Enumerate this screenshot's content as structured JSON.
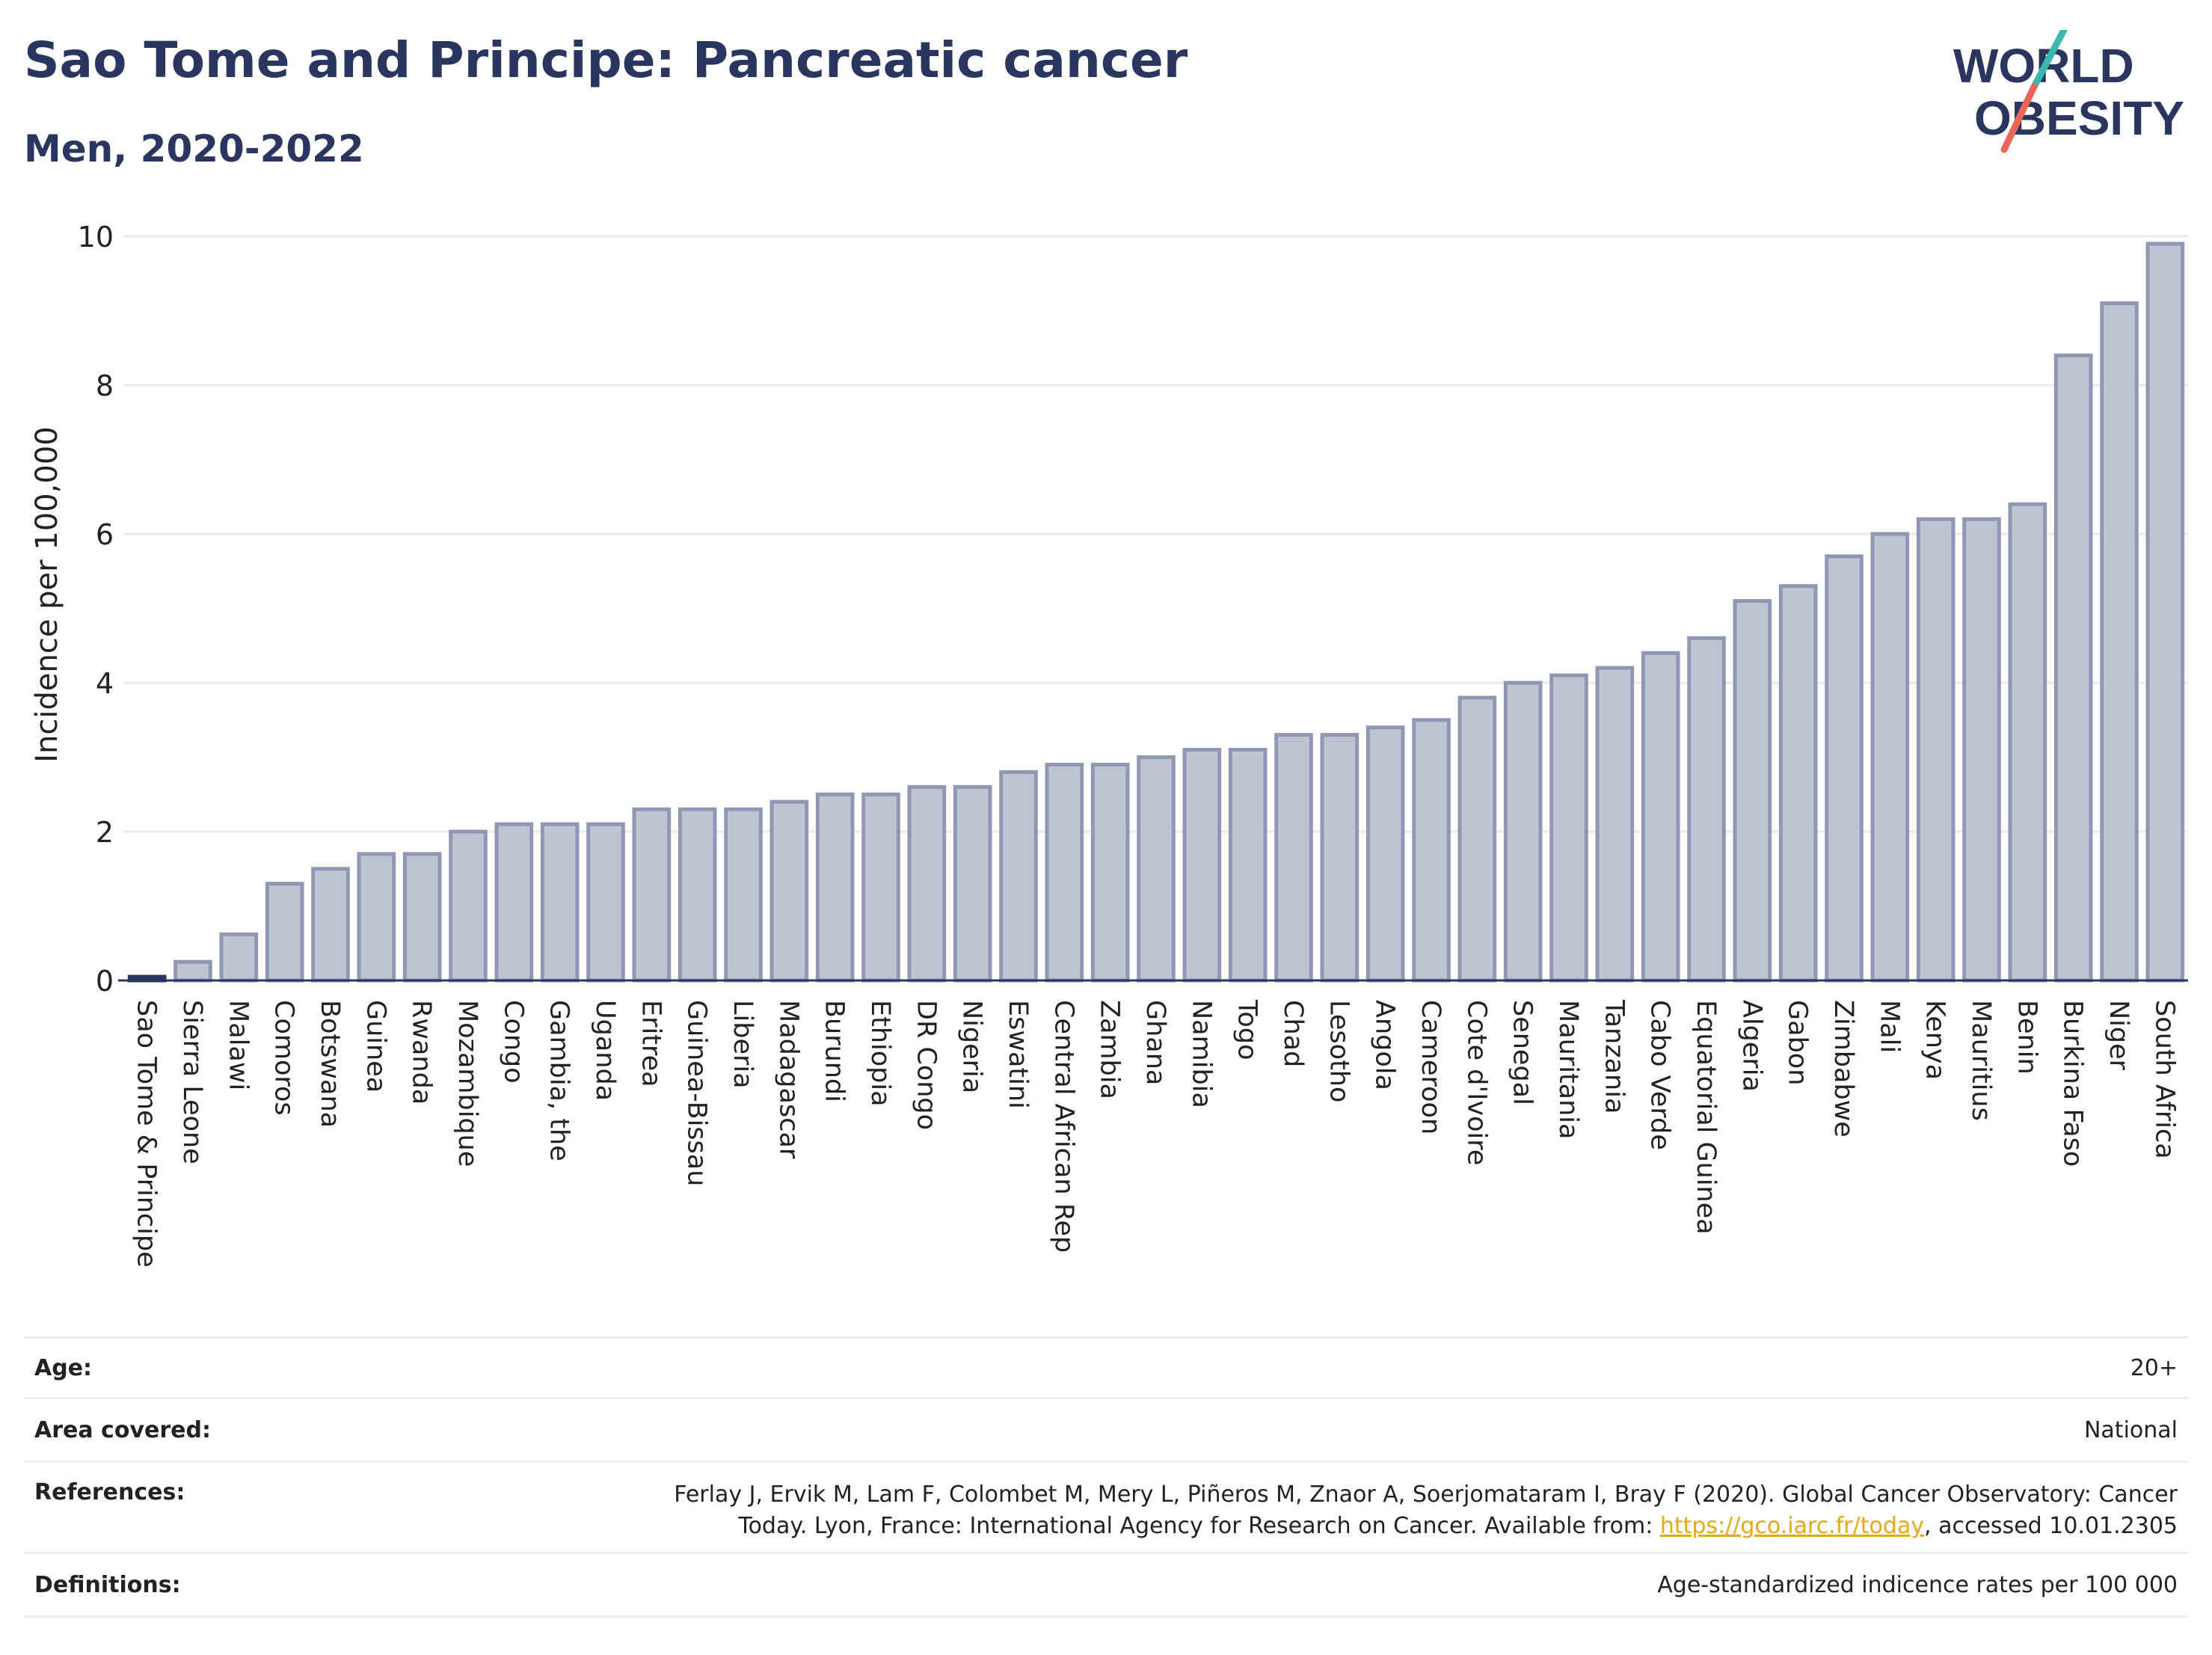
{
  "header": {
    "title": "Sao Tome and Principe: Pancreatic cancer",
    "subtitle": "Men, 2020-2022",
    "logo_line1": "WORLD",
    "logo_line2": "OBESITY"
  },
  "colors": {
    "title": "#2b3660",
    "bar_fill": "#bfc4d3",
    "bar_stroke": "#8f97b3",
    "highlight_bar": "#2b3660",
    "grid": "#e8eaf0",
    "link": "#e6a817",
    "logo_teal": "#3bb8b0",
    "logo_coral": "#e8675a"
  },
  "chart_data": {
    "type": "bar",
    "title": "",
    "xlabel": "",
    "ylabel": "Incidence per 100,000",
    "ylim": [
      0,
      10
    ],
    "yticks": [
      0,
      2,
      4,
      6,
      8,
      10
    ],
    "grid": true,
    "categories": [
      "Sao Tome & Principe",
      "Sierra Leone",
      "Malawi",
      "Comoros",
      "Botswana",
      "Guinea",
      "Rwanda",
      "Mozambique",
      "Congo",
      "Gambia, the",
      "Uganda",
      "Eritrea",
      "Guinea-Bissau",
      "Liberia",
      "Madagascar",
      "Burundi",
      "Ethiopia",
      "DR Congo",
      "Nigeria",
      "Eswatini",
      "Central African Rep",
      "Zambia",
      "Ghana",
      "Namibia",
      "Togo",
      "Chad",
      "Lesotho",
      "Angola",
      "Cameroon",
      "Cote d'Ivoire",
      "Senegal",
      "Mauritania",
      "Tanzania",
      "Cabo Verde",
      "Equatorial Guinea",
      "Algeria",
      "Gabon",
      "Zimbabwe",
      "Mali",
      "Kenya",
      "Mauritius",
      "Benin",
      "Burkina Faso",
      "Niger",
      "South Africa"
    ],
    "values": [
      0.05,
      0.25,
      0.62,
      1.3,
      1.5,
      1.7,
      1.7,
      2.0,
      2.1,
      2.1,
      2.1,
      2.3,
      2.3,
      2.3,
      2.4,
      2.5,
      2.5,
      2.6,
      2.6,
      2.8,
      2.9,
      2.9,
      3.0,
      3.1,
      3.1,
      3.3,
      3.3,
      3.4,
      3.5,
      3.8,
      4.0,
      4.1,
      4.2,
      4.4,
      4.6,
      5.1,
      5.3,
      5.7,
      6.0,
      6.2,
      6.2,
      6.4,
      8.4,
      9.1,
      9.9
    ],
    "highlight_index": 0
  },
  "meta": {
    "age_label": "Age:",
    "age_value": "20+",
    "area_label": "Area covered:",
    "area_value": "National",
    "references_label": "References:",
    "references_line1": "Ferlay J, Ervik M, Lam F, Colombet M, Mery L, Piñeros M, Znaor A, Soerjomataram I, Bray F (2020). Global Cancer Observatory: Cancer",
    "references_line2_pre": "Today. Lyon, France: International Agency for Research on Cancer. Available from: ",
    "references_link": "https://gco.iarc.fr/today",
    "references_line2_post": ", accessed 10.01.2305",
    "definitions_label": "Definitions:",
    "definitions_value": "Age-standardized indicence rates per 100 000"
  }
}
